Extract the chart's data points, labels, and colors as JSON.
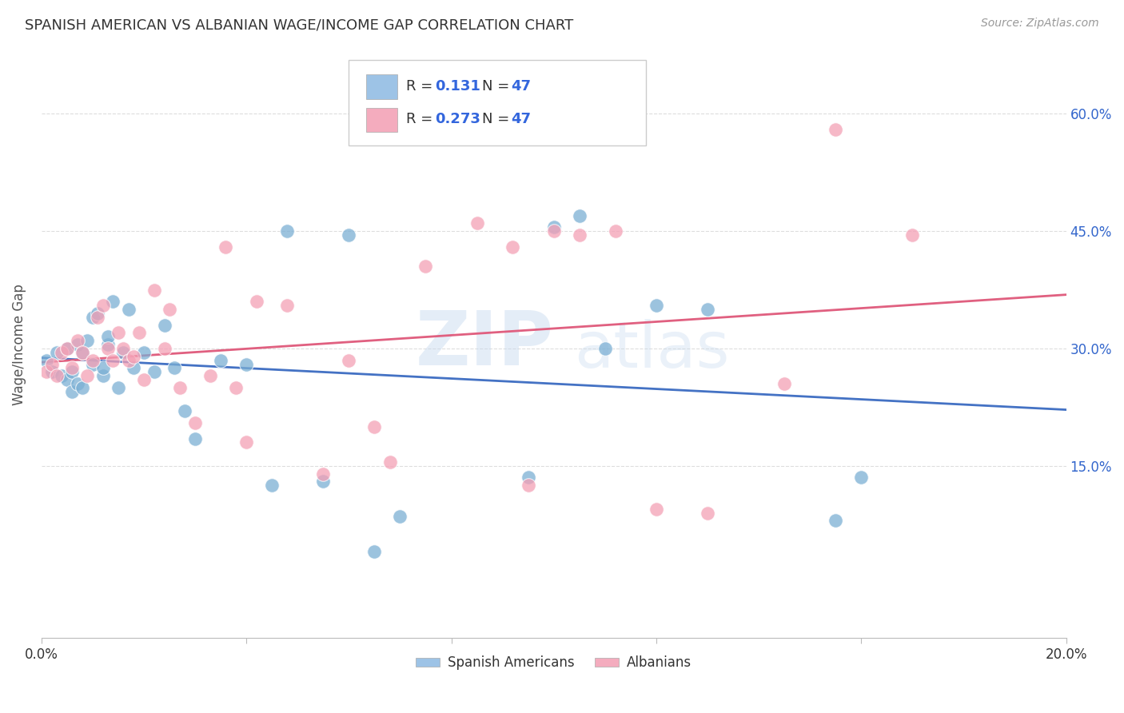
{
  "title": "SPANISH AMERICAN VS ALBANIAN WAGE/INCOME GAP CORRELATION CHART",
  "source": "Source: ZipAtlas.com",
  "ylabel": "Wage/Income Gap",
  "r_blue": 0.131,
  "n_blue": 47,
  "r_pink": 0.273,
  "n_pink": 47,
  "x_min": 0.0,
  "x_max": 0.2,
  "y_min": -0.07,
  "y_max": 0.68,
  "color_blue": "#7BAFD4",
  "color_pink": "#F4A0B5",
  "line_color_blue": "#4472C4",
  "line_color_pink": "#E06080",
  "legend_color_blue": "#9DC3E6",
  "legend_color_pink": "#F4ACBE",
  "blue_x": [
    0.001,
    0.002,
    0.003,
    0.004,
    0.005,
    0.005,
    0.006,
    0.006,
    0.007,
    0.007,
    0.008,
    0.008,
    0.009,
    0.01,
    0.01,
    0.011,
    0.012,
    0.012,
    0.013,
    0.013,
    0.014,
    0.015,
    0.016,
    0.017,
    0.018,
    0.02,
    0.022,
    0.024,
    0.026,
    0.028,
    0.03,
    0.035,
    0.04,
    0.045,
    0.048,
    0.055,
    0.06,
    0.065,
    0.07,
    0.095,
    0.1,
    0.105,
    0.11,
    0.12,
    0.13,
    0.155,
    0.16
  ],
  "blue_y": [
    0.285,
    0.27,
    0.295,
    0.265,
    0.26,
    0.3,
    0.27,
    0.245,
    0.255,
    0.305,
    0.25,
    0.295,
    0.31,
    0.28,
    0.34,
    0.345,
    0.265,
    0.275,
    0.305,
    0.315,
    0.36,
    0.25,
    0.295,
    0.35,
    0.275,
    0.295,
    0.27,
    0.33,
    0.275,
    0.22,
    0.185,
    0.285,
    0.28,
    0.125,
    0.45,
    0.13,
    0.445,
    0.04,
    0.085,
    0.135,
    0.455,
    0.47,
    0.3,
    0.355,
    0.35,
    0.08,
    0.135
  ],
  "pink_x": [
    0.001,
    0.002,
    0.003,
    0.004,
    0.005,
    0.006,
    0.007,
    0.008,
    0.009,
    0.01,
    0.011,
    0.012,
    0.013,
    0.014,
    0.015,
    0.016,
    0.017,
    0.018,
    0.019,
    0.02,
    0.022,
    0.024,
    0.025,
    0.027,
    0.03,
    0.033,
    0.036,
    0.038,
    0.04,
    0.042,
    0.048,
    0.055,
    0.06,
    0.065,
    0.068,
    0.075,
    0.085,
    0.092,
    0.095,
    0.1,
    0.105,
    0.112,
    0.12,
    0.13,
    0.145,
    0.155,
    0.17
  ],
  "pink_y": [
    0.27,
    0.28,
    0.265,
    0.295,
    0.3,
    0.275,
    0.31,
    0.295,
    0.265,
    0.285,
    0.34,
    0.355,
    0.3,
    0.285,
    0.32,
    0.3,
    0.285,
    0.29,
    0.32,
    0.26,
    0.375,
    0.3,
    0.35,
    0.25,
    0.205,
    0.265,
    0.43,
    0.25,
    0.18,
    0.36,
    0.355,
    0.14,
    0.285,
    0.2,
    0.155,
    0.405,
    0.46,
    0.43,
    0.125,
    0.45,
    0.445,
    0.45,
    0.095,
    0.09,
    0.255,
    0.58,
    0.445
  ],
  "watermark_zip": "ZIP",
  "watermark_atlas": "atlas",
  "background_color": "#FFFFFF",
  "grid_color": "#DDDDDD"
}
